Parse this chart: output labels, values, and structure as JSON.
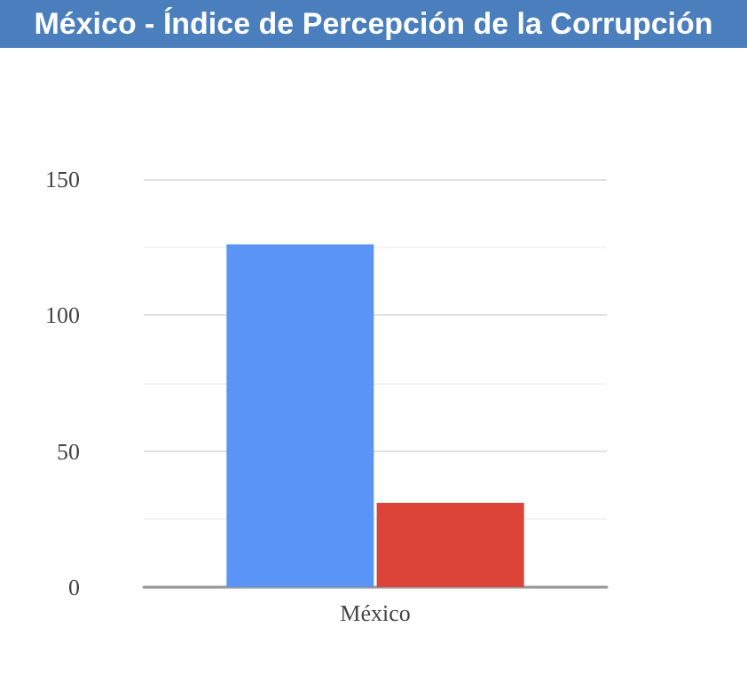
{
  "chart_data": {
    "type": "bar",
    "title": "México - Índice de Percepción de la Corrupción",
    "categories": [
      "México"
    ],
    "series": [
      {
        "color": "#5a95f5",
        "values": [
          126
        ]
      },
      {
        "color": "#db4437",
        "values": [
          31
        ]
      }
    ],
    "ylim": [
      0,
      150
    ],
    "yticks": [
      0,
      50,
      100,
      150
    ],
    "grid": "y"
  }
}
